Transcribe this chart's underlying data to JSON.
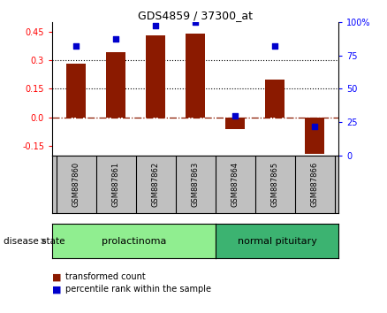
{
  "title": "GDS4859 / 37300_at",
  "samples": [
    "GSM887860",
    "GSM887861",
    "GSM887862",
    "GSM887863",
    "GSM887864",
    "GSM887865",
    "GSM887866"
  ],
  "bar_values": [
    0.28,
    0.34,
    0.43,
    0.44,
    -0.06,
    0.2,
    -0.19
  ],
  "percentile_values": [
    82,
    87,
    97,
    100,
    30,
    82,
    22
  ],
  "bar_color": "#8B1A00",
  "percentile_color": "#0000CC",
  "ylim": [
    -0.2,
    0.5
  ],
  "yticks_left": [
    -0.15,
    0.0,
    0.15,
    0.3,
    0.45
  ],
  "yticks_right": [
    0,
    25,
    50,
    75,
    100
  ],
  "grid_lines": [
    0.15,
    0.3
  ],
  "prolactinoma_color": "#90EE90",
  "normal_pituitary_color": "#3CB371",
  "label_bar": "transformed count",
  "label_percentile": "percentile rank within the sample",
  "disease_state_label": "disease state",
  "prolactinoma_label": "prolactinoma",
  "normal_label": "normal pituitary",
  "background_color": "#ffffff",
  "header_bg_color": "#C0C0C0"
}
